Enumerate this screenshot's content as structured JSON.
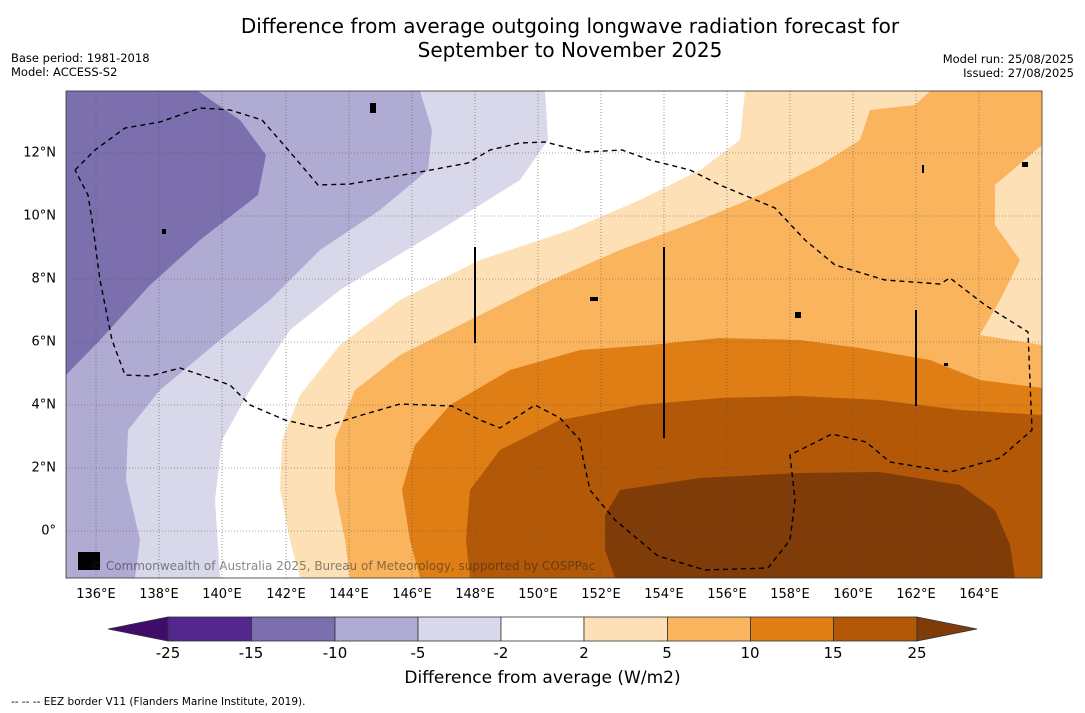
{
  "title_line1": "Difference from average outgoing longwave radiation forecast for",
  "title_line2": "September to November 2025",
  "base_period": "Base period: 1981-2018",
  "model": "Model: ACCESS-S2",
  "model_run": "Model run: 25/08/2025",
  "issued": "Issued: 27/08/2025",
  "longitudes": [
    "136°E",
    "138°E",
    "140°E",
    "142°E",
    "144°E",
    "146°E",
    "148°E",
    "150°E",
    "152°E",
    "154°E",
    "156°E",
    "158°E",
    "160°E",
    "162°E",
    "164°E"
  ],
  "latitudes": [
    "12°N",
    "10°N",
    "8°N",
    "6°N",
    "4°N",
    "2°N",
    "0°"
  ],
  "copyright": "© Commonwealth of Australia 2025, Bureau of Meteorology, supported by COSPPac",
  "colorbar": {
    "title": "Difference from average (W/m2)",
    "ticks": [
      "-25",
      "-15",
      "-10",
      "-5",
      "-2",
      "2",
      "5",
      "10",
      "15",
      "25"
    ],
    "colors": [
      "#3f0c6b",
      "#54278f",
      "#7b6fae",
      "#b0abd3",
      "#d8d8ea",
      "#ffffff",
      "#fee0b6",
      "#fbb45e",
      "#df7e14",
      "#b35806",
      "#7f3b08"
    ]
  },
  "footnote": "--  --  -- EEZ border V11 (Flanders Marine Institute, 2019)."
}
